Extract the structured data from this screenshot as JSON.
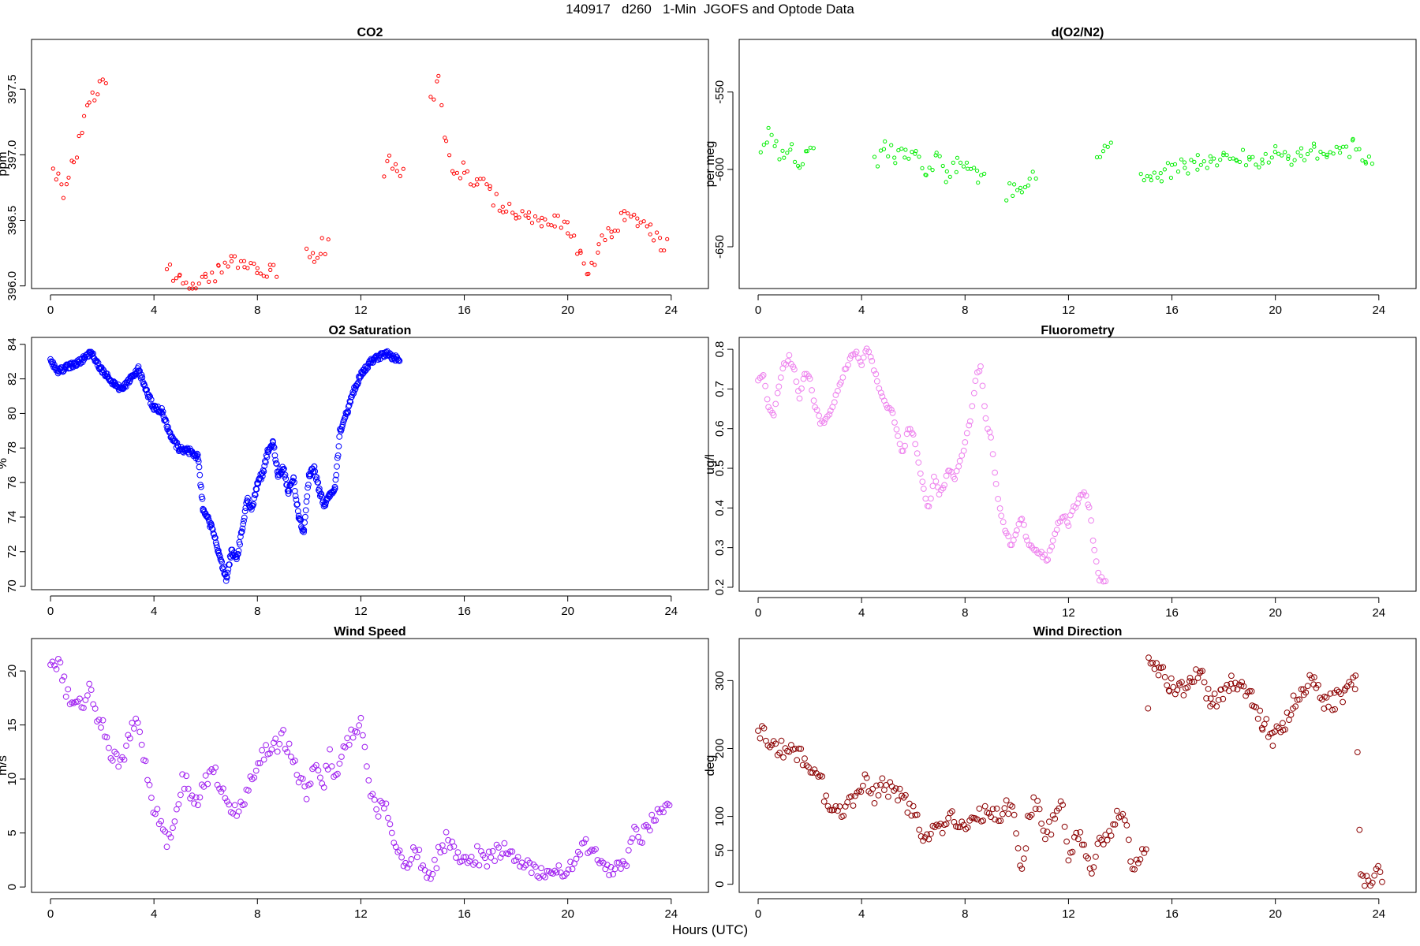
{
  "main_title": "140917   d260   1-Min  JGOFS and Optode Data",
  "x_axis_label": "Hours (UTC)",
  "chart_data": [
    {
      "id": "co2",
      "type": "scatter",
      "title": "CO2",
      "ylabel": "ppm",
      "color": "#ff0000",
      "marker": "small-open-circle",
      "xlim": [
        0,
        24
      ],
      "ylim": [
        395.98,
        397.88
      ],
      "xticks": [
        0,
        4,
        8,
        12,
        16,
        20,
        24
      ],
      "yticks": [
        396.0,
        396.5,
        397.0,
        397.5
      ],
      "ytick_labels": [
        "396.0",
        "396.5",
        "397.0",
        "397.5"
      ],
      "series": [
        {
          "name": "CO2",
          "x": [
            0.1,
            0.3,
            0.5,
            0.7,
            0.9,
            1.1,
            1.3,
            1.5,
            1.7,
            1.9,
            4.5,
            5.0,
            5.5,
            6.0,
            6.5,
            7.0,
            7.5,
            8.0,
            8.5,
            9.9,
            10.2,
            10.5,
            12.9,
            13.1,
            13.4,
            14.7,
            15.0,
            15.3,
            15.6,
            16.0,
            16.5,
            17.0,
            17.5,
            18.0,
            18.5,
            19.0,
            19.5,
            20.0,
            20.5,
            20.8,
            21.2,
            21.7,
            22.2,
            22.7,
            23.2,
            23.6
          ],
          "y": [
            396.9,
            396.8,
            396.7,
            396.85,
            396.95,
            397.1,
            397.25,
            397.35,
            397.45,
            397.55,
            396.12,
            396.05,
            396.03,
            396.05,
            396.1,
            396.17,
            396.13,
            396.15,
            396.13,
            396.22,
            396.2,
            396.3,
            396.9,
            397.0,
            396.85,
            397.4,
            397.6,
            397.1,
            396.9,
            396.88,
            396.8,
            396.7,
            396.6,
            396.55,
            396.52,
            396.48,
            396.5,
            396.45,
            396.2,
            396.1,
            396.3,
            396.4,
            396.55,
            396.5,
            396.45,
            396.3
          ]
        }
      ]
    },
    {
      "id": "do2n2",
      "type": "scatter",
      "title": "d(O2/N2)",
      "ylabel": "per meg",
      "color": "#00ee00",
      "marker": "small-open-circle",
      "xlim": [
        0,
        24
      ],
      "ylim": [
        -677,
        -516
      ],
      "xticks": [
        0,
        4,
        8,
        12,
        16,
        20,
        24
      ],
      "yticks": [
        -550,
        -600,
        -650
      ],
      "ytick_labels": [
        "-550",
        "-600",
        "-650"
      ],
      "series": [
        {
          "name": "d(O2/N2)",
          "x": [
            0.1,
            0.4,
            0.7,
            1.0,
            1.3,
            1.6,
            1.9,
            4.5,
            4.9,
            5.3,
            5.7,
            6.1,
            6.5,
            6.9,
            7.3,
            7.7,
            8.1,
            8.5,
            9.6,
            9.9,
            10.2,
            10.5,
            13.1,
            13.4,
            14.8,
            15.2,
            15.6,
            16.0,
            16.5,
            17.0,
            17.5,
            18.0,
            18.5,
            19.0,
            19.5,
            20.0,
            20.5,
            21.0,
            21.5,
            22.0,
            22.5,
            23.0,
            23.5
          ],
          "y": [
            -590,
            -578,
            -585,
            -595,
            -583,
            -600,
            -590,
            -597,
            -585,
            -592,
            -588,
            -590,
            -600,
            -593,
            -605,
            -598,
            -600,
            -607,
            -615,
            -612,
            -610,
            -605,
            -590,
            -585,
            -600,
            -605,
            -603,
            -600,
            -598,
            -595,
            -597,
            -592,
            -590,
            -595,
            -593,
            -590,
            -592,
            -590,
            -588,
            -593,
            -590,
            -585,
            -592
          ]
        }
      ]
    },
    {
      "id": "o2sat",
      "type": "scatter",
      "title": "O2 Saturation",
      "ylabel": "%",
      "color": "#0000ff",
      "marker": "dense-open-circle",
      "xlim": [
        0,
        24
      ],
      "ylim": [
        69.8,
        84.4
      ],
      "xticks": [
        0,
        4,
        8,
        12,
        16,
        20,
        24
      ],
      "yticks": [
        70,
        72,
        74,
        76,
        78,
        80,
        82,
        84
      ],
      "ytick_labels": [
        "70",
        "72",
        "74",
        "76",
        "78",
        "80",
        "82",
        "84"
      ],
      "series": [
        {
          "name": "O2 Saturation",
          "x": [
            0.0,
            0.3,
            0.6,
            1.0,
            1.3,
            1.6,
            1.9,
            2.2,
            2.5,
            2.8,
            3.1,
            3.4,
            3.7,
            4.0,
            4.3,
            4.6,
            5.0,
            5.4,
            5.7,
            5.9,
            6.2,
            6.5,
            6.8,
            7.0,
            7.2,
            7.4,
            7.6,
            7.8,
            8.0,
            8.2,
            8.4,
            8.6,
            8.8,
            9.0,
            9.2,
            9.4,
            9.6,
            9.8,
            10.0,
            10.2,
            10.4,
            10.6,
            10.8,
            11.0,
            11.2,
            11.5,
            11.8,
            12.1,
            12.4,
            12.7,
            13.0,
            13.2
          ],
          "y": [
            83.1,
            82.4,
            82.7,
            82.9,
            83.2,
            83.5,
            82.6,
            82.2,
            81.6,
            81.4,
            82.0,
            82.6,
            81.3,
            80.3,
            80.2,
            78.8,
            77.9,
            77.8,
            77.5,
            74.5,
            73.5,
            72.0,
            70.4,
            72.0,
            71.6,
            73.2,
            75.0,
            74.5,
            76.0,
            76.5,
            77.8,
            78.3,
            76.5,
            76.8,
            75.5,
            76.2,
            74.0,
            73.1,
            76.5,
            76.8,
            75.5,
            74.6,
            75.3,
            75.7,
            79.0,
            80.2,
            81.6,
            82.5,
            83.0,
            83.3,
            83.5,
            83.2
          ]
        }
      ]
    },
    {
      "id": "fluor",
      "type": "scatter",
      "title": "Fluorometry",
      "ylabel": "ug/l",
      "color": "#ee82ee",
      "marker": "open-circle",
      "xlim": [
        0,
        24
      ],
      "ylim": [
        0.19,
        0.83
      ],
      "xticks": [
        0,
        4,
        8,
        12,
        16,
        20,
        24
      ],
      "yticks": [
        0.2,
        0.3,
        0.4,
        0.5,
        0.6,
        0.7,
        0.8
      ],
      "ytick_labels": [
        "0.2",
        "0.3",
        "0.4",
        "0.5",
        "0.6",
        "0.7",
        "0.8"
      ],
      "series": [
        {
          "name": "Fluorometry",
          "x": [
            0.0,
            0.2,
            0.4,
            0.6,
            0.8,
            1.0,
            1.2,
            1.4,
            1.6,
            1.8,
            2.0,
            2.2,
            2.4,
            2.6,
            2.8,
            3.0,
            3.2,
            3.4,
            3.6,
            3.8,
            4.0,
            4.2,
            4.4,
            4.6,
            4.8,
            5.0,
            5.2,
            5.4,
            5.6,
            5.8,
            6.0,
            6.2,
            6.4,
            6.6,
            6.8,
            7.0,
            7.2,
            7.4,
            7.6,
            7.8,
            8.0,
            8.2,
            8.4,
            8.6,
            8.8,
            9.0,
            9.2,
            9.4,
            9.6,
            9.8,
            10.0,
            10.2,
            10.4,
            10.6,
            10.8,
            11.0,
            11.2,
            11.4,
            11.6,
            11.8,
            12.0,
            12.2,
            12.4,
            12.6,
            12.8,
            13.0,
            13.2
          ],
          "y": [
            0.72,
            0.73,
            0.66,
            0.64,
            0.7,
            0.76,
            0.78,
            0.75,
            0.68,
            0.74,
            0.72,
            0.66,
            0.62,
            0.62,
            0.64,
            0.68,
            0.72,
            0.75,
            0.78,
            0.8,
            0.76,
            0.8,
            0.77,
            0.72,
            0.68,
            0.66,
            0.64,
            0.58,
            0.54,
            0.6,
            0.58,
            0.52,
            0.45,
            0.4,
            0.48,
            0.44,
            0.46,
            0.5,
            0.48,
            0.52,
            0.56,
            0.62,
            0.72,
            0.76,
            0.62,
            0.58,
            0.46,
            0.38,
            0.34,
            0.3,
            0.34,
            0.38,
            0.32,
            0.3,
            0.29,
            0.28,
            0.27,
            0.32,
            0.36,
            0.38,
            0.36,
            0.4,
            0.42,
            0.44,
            0.4,
            0.3,
            0.22
          ]
        }
      ]
    },
    {
      "id": "wspd",
      "type": "scatter",
      "title": "Wind Speed",
      "ylabel": "m/s",
      "color": "#a020f0",
      "marker": "open-circle",
      "xlim": [
        0,
        24
      ],
      "ylim": [
        -0.5,
        23
      ],
      "xticks": [
        0,
        4,
        8,
        12,
        16,
        20,
        24
      ],
      "yticks": [
        0,
        5,
        10,
        15,
        20
      ],
      "ytick_labels": [
        "0",
        "5",
        "10",
        "15",
        "20"
      ],
      "series": [
        {
          "name": "Wind Speed",
          "x": [
            0.0,
            0.3,
            0.6,
            0.9,
            1.2,
            1.5,
            1.8,
            2.1,
            2.4,
            2.7,
            3.0,
            3.3,
            3.6,
            3.9,
            4.2,
            4.5,
            4.8,
            5.1,
            5.4,
            5.7,
            6.0,
            6.3,
            6.6,
            6.9,
            7.2,
            7.5,
            7.8,
            8.1,
            8.4,
            8.7,
            9.0,
            9.3,
            9.6,
            9.9,
            10.2,
            10.5,
            10.8,
            11.1,
            11.4,
            11.7,
            12.0,
            12.3,
            12.6,
            12.9,
            13.2,
            13.5,
            13.8,
            14.1,
            14.4,
            14.7,
            15.0,
            15.3,
            15.6,
            15.9,
            16.2,
            16.5,
            16.8,
            17.1,
            17.4,
            17.7,
            18.0,
            18.3,
            18.6,
            18.9,
            19.2,
            19.5,
            19.8,
            20.1,
            20.4,
            20.7,
            21.0,
            21.3,
            21.6,
            21.9,
            22.2,
            22.5,
            22.8,
            23.1,
            23.4,
            23.7
          ],
          "y": [
            20.5,
            20.8,
            18.0,
            16.5,
            17.0,
            18.5,
            16.0,
            14.5,
            12.0,
            11.0,
            14.0,
            15.5,
            12.0,
            8.0,
            6.0,
            4.0,
            6.0,
            10.0,
            9.0,
            8.0,
            10.0,
            11.0,
            9.0,
            7.5,
            7.0,
            8.0,
            10.5,
            12.0,
            12.5,
            13.0,
            14.0,
            12.0,
            10.5,
            8.0,
            11.0,
            9.0,
            12.0,
            10.0,
            13.0,
            14.5,
            15.0,
            10.0,
            7.0,
            8.0,
            5.0,
            3.0,
            2.5,
            3.5,
            2.0,
            1.0,
            3.0,
            4.5,
            3.5,
            2.5,
            2.5,
            3.0,
            2.0,
            3.0,
            3.5,
            3.0,
            2.5,
            2.0,
            1.5,
            1.0,
            1.0,
            1.5,
            1.0,
            2.0,
            3.0,
            4.0,
            3.0,
            2.0,
            1.5,
            2.0,
            1.5,
            5.0,
            4.5,
            5.5,
            6.5,
            7.5
          ]
        }
      ]
    },
    {
      "id": "wdir",
      "type": "scatter",
      "title": "Wind Direction",
      "ylabel": "deg",
      "color": "#8b0000",
      "marker": "open-circle",
      "xlim": [
        0,
        24
      ],
      "ylim": [
        -12,
        362
      ],
      "xticks": [
        0,
        4,
        8,
        12,
        16,
        20,
        24
      ],
      "yticks": [
        0,
        50,
        100,
        200,
        300
      ],
      "ytick_labels": [
        "0",
        "50",
        "100",
        "200",
        "300"
      ],
      "series": [
        {
          "name": "Wind Direction",
          "x": [
            0.0,
            0.3,
            0.6,
            0.9,
            1.2,
            1.5,
            1.8,
            2.1,
            2.4,
            2.7,
            3.0,
            3.3,
            3.6,
            3.9,
            4.2,
            4.5,
            4.8,
            5.1,
            5.4,
            5.7,
            6.0,
            6.3,
            6.6,
            6.9,
            7.2,
            7.5,
            7.8,
            8.1,
            8.4,
            8.7,
            9.0,
            9.3,
            9.6,
            9.9,
            10.2,
            10.5,
            10.8,
            11.1,
            11.4,
            11.7,
            12.0,
            12.3,
            12.6,
            12.9,
            13.2,
            13.5,
            13.8,
            14.1,
            14.4,
            14.7,
            15.0,
            15.1,
            15.5,
            15.9,
            16.3,
            16.7,
            17.1,
            17.5,
            17.9,
            18.3,
            18.7,
            19.1,
            19.5,
            19.9,
            20.3,
            20.7,
            21.1,
            21.5,
            21.9,
            22.3,
            22.7,
            23.1,
            23.3,
            23.6,
            23.9
          ],
          "y": [
            225,
            215,
            205,
            200,
            195,
            190,
            185,
            175,
            160,
            110,
            105,
            100,
            120,
            140,
            155,
            130,
            145,
            140,
            130,
            120,
            105,
            75,
            70,
            95,
            85,
            110,
            75,
            95,
            100,
            105,
            110,
            100,
            115,
            105,
            20,
            110,
            120,
            70,
            90,
            130,
            40,
            70,
            60,
            20,
            75,
            60,
            100,
            110,
            40,
            20,
            60,
            335,
            320,
            295,
            285,
            300,
            310,
            265,
            280,
            295,
            300,
            270,
            240,
            215,
            230,
            270,
            290,
            300,
            265,
            270,
            285,
            300,
            10,
            5,
            15
          ]
        }
      ]
    }
  ]
}
